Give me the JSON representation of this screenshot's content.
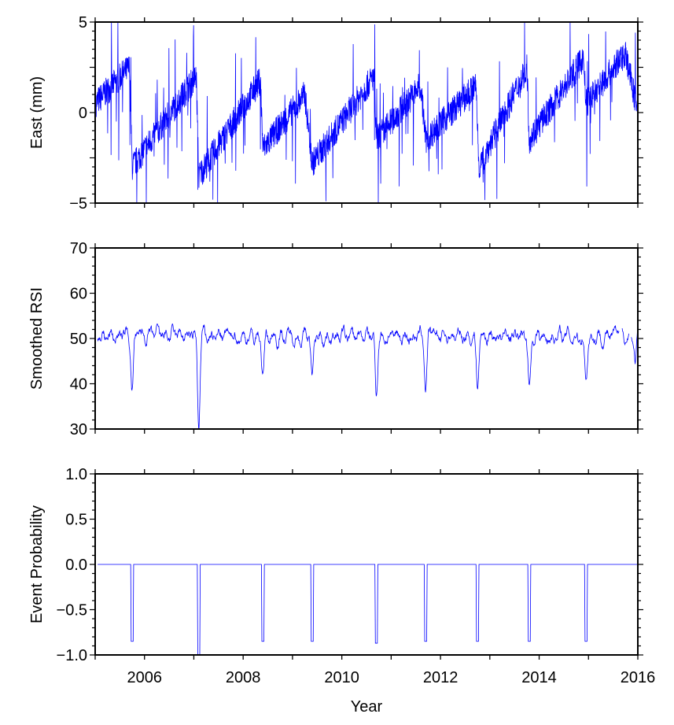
{
  "chart_data": [
    {
      "type": "line",
      "panel": "east",
      "ylabel": "East (mm)",
      "ylim": [
        -5,
        5
      ],
      "yticks": [
        -5,
        0,
        5
      ],
      "ytick_labels": [
        "−5",
        "0",
        "5"
      ],
      "xlim": [
        2005,
        2016
      ],
      "color": "#0000ff",
      "note": "piecewise trend knots [year, mm]; plotted with daily scatter",
      "trend": [
        [
          2005.0,
          0.5
        ],
        [
          2005.7,
          2.5
        ],
        [
          2005.75,
          -3.0
        ],
        [
          2007.05,
          2.0
        ],
        [
          2007.1,
          -3.5
        ],
        [
          2008.35,
          1.8
        ],
        [
          2008.4,
          -2.0
        ],
        [
          2009.25,
          1.0
        ],
        [
          2009.4,
          -2.8
        ],
        [
          2010.65,
          2.0
        ],
        [
          2010.7,
          -1.5
        ],
        [
          2011.6,
          1.5
        ],
        [
          2011.7,
          -1.5
        ],
        [
          2012.72,
          1.5
        ],
        [
          2012.78,
          -3.0
        ],
        [
          2013.75,
          2.5
        ],
        [
          2013.8,
          -1.5
        ],
        [
          2014.9,
          3.0
        ],
        [
          2014.95,
          0.5
        ],
        [
          2015.75,
          3.3
        ],
        [
          2016.0,
          0.0
        ]
      ]
    },
    {
      "type": "line",
      "panel": "rsi",
      "ylabel": "Smoothed RSI",
      "ylim": [
        30,
        70
      ],
      "yticks": [
        30,
        40,
        50,
        60,
        70
      ],
      "ytick_labels": [
        "30",
        "40",
        "50",
        "60",
        "70"
      ],
      "xlim": [
        2005,
        2016
      ],
      "color": "#0000ff",
      "baseline": 50.5,
      "dips": [
        [
          2005.75,
          38.5
        ],
        [
          2007.1,
          30
        ],
        [
          2008.4,
          42
        ],
        [
          2009.4,
          40.5
        ],
        [
          2010.7,
          38
        ],
        [
          2011.7,
          39.5
        ],
        [
          2012.75,
          40
        ],
        [
          2013.8,
          39
        ],
        [
          2014.95,
          41
        ],
        [
          2015.95,
          45.5
        ]
      ]
    },
    {
      "type": "line",
      "panel": "probability",
      "ylabel": "Event Probability",
      "xlabel": "Year",
      "ylim": [
        -1.0,
        1.0
      ],
      "yticks": [
        -1.0,
        -0.5,
        0.0,
        0.5,
        1.0
      ],
      "ytick_labels": [
        "−1.0",
        "−0.5",
        "0.0",
        "0.5",
        "1.0"
      ],
      "xlim": [
        2005,
        2016
      ],
      "xticks": [
        2006,
        2008,
        2010,
        2012,
        2014,
        2016
      ],
      "xtick_labels": [
        "2006",
        "2008",
        "2010",
        "2012",
        "2014",
        "2016"
      ],
      "color": "#0000ff",
      "events": [
        [
          2005.75,
          -0.85
        ],
        [
          2007.1,
          -1.0
        ],
        [
          2008.4,
          -0.85
        ],
        [
          2009.4,
          -0.85
        ],
        [
          2010.7,
          -0.87
        ],
        [
          2011.7,
          -0.85
        ],
        [
          2012.75,
          -0.85
        ],
        [
          2013.8,
          -0.85
        ],
        [
          2014.95,
          -0.85
        ]
      ]
    }
  ]
}
